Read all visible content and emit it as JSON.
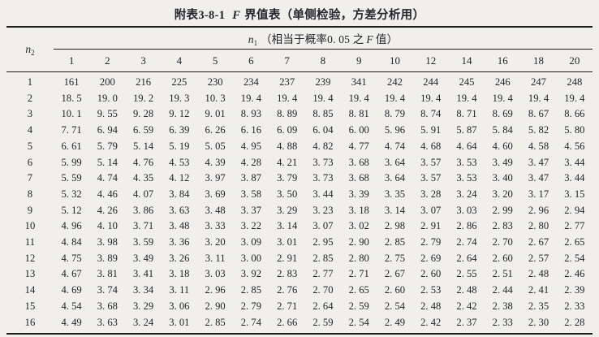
{
  "title": {
    "prefix": "附表3-8-1",
    "f": "F",
    "rest": "界值表（单侧检验，方差分析用）"
  },
  "table": {
    "row_variable": {
      "var": "n",
      "sub": "2"
    },
    "spanner": {
      "var": "n",
      "sub": "1",
      "note_pre": "（相当于概率0. 05 之",
      "f": "F",
      "note_post": "值）"
    },
    "columns": [
      "1",
      "2",
      "3",
      "4",
      "5",
      "6",
      "7",
      "8",
      "9",
      "10",
      "12",
      "14",
      "16",
      "18",
      "20"
    ],
    "rows": [
      {
        "n2": "1",
        "values": [
          "161",
          "200",
          "216",
          "225",
          "230",
          "234",
          "237",
          "239",
          "341",
          "242",
          "244",
          "245",
          "246",
          "247",
          "248"
        ]
      },
      {
        "n2": "2",
        "values": [
          "18. 5",
          "19. 0",
          "19. 2",
          "19. 3",
          "10. 3",
          "19. 4",
          "19. 4",
          "19. 4",
          "19. 4",
          "19. 4",
          "19. 4",
          "19. 4",
          "19. 4",
          "19. 4",
          "19. 4"
        ]
      },
      {
        "n2": "3",
        "values": [
          "10. 1",
          "9. 55",
          "9. 28",
          "9. 12",
          "9. 01",
          "8. 93",
          "8. 89",
          "8. 85",
          "8. 81",
          "8. 79",
          "8. 74",
          "8. 71",
          "8. 69",
          "8. 67",
          "8. 66"
        ]
      },
      {
        "n2": "4",
        "values": [
          "7. 71",
          "6. 94",
          "6. 59",
          "6. 39",
          "6. 26",
          "6. 16",
          "6. 09",
          "6. 04",
          "6. 00",
          "5. 96",
          "5. 91",
          "5. 87",
          "5. 84",
          "5. 82",
          "5. 80"
        ]
      },
      {
        "n2": "5",
        "values": [
          "6. 61",
          "5. 79",
          "5. 14",
          "5. 19",
          "5. 05",
          "4. 95",
          "4. 88",
          "4. 82",
          "4. 77",
          "4. 74",
          "4. 68",
          "4. 64",
          "4. 60",
          "4. 58",
          "4. 56"
        ]
      },
      {
        "n2": "6",
        "values": [
          "5. 99",
          "5. 14",
          "4. 76",
          "4. 53",
          "4. 39",
          "4. 28",
          "4. 21",
          "3. 73",
          "3. 68",
          "3. 64",
          "3. 57",
          "3. 53",
          "3. 49",
          "3. 47",
          "3. 44"
        ]
      },
      {
        "n2": "7",
        "values": [
          "5. 59",
          "4. 74",
          "4. 35",
          "4. 12",
          "3. 97",
          "3. 87",
          "3. 79",
          "3. 73",
          "3. 68",
          "3. 64",
          "3. 57",
          "3. 53",
          "3. 40",
          "3. 47",
          "3. 44"
        ]
      },
      {
        "n2": "8",
        "values": [
          "5. 32",
          "4. 46",
          "4. 07",
          "3. 84",
          "3. 69",
          "3. 58",
          "3. 50",
          "3. 44",
          "3. 39",
          "3. 35",
          "3. 28",
          "3. 24",
          "3. 20",
          "3. 17",
          "3. 15"
        ]
      },
      {
        "n2": "9",
        "values": [
          "5. 12",
          "4. 26",
          "3. 86",
          "3. 63",
          "3. 48",
          "3. 37",
          "3. 29",
          "3. 23",
          "3. 18",
          "3. 14",
          "3. 07",
          "3. 03",
          "2. 99",
          "2. 96",
          "2. 94"
        ]
      },
      {
        "n2": "10",
        "values": [
          "4. 96",
          "4. 10",
          "3. 71",
          "3. 48",
          "3. 33",
          "3. 22",
          "3. 14",
          "3. 07",
          "3. 02",
          "2. 98",
          "2. 91",
          "2. 86",
          "2. 83",
          "2. 80",
          "2. 77"
        ]
      },
      {
        "n2": "11",
        "values": [
          "4. 84",
          "3. 98",
          "3. 59",
          "3. 36",
          "3. 20",
          "3. 09",
          "3. 01",
          "2. 95",
          "2. 90",
          "2. 85",
          "2. 79",
          "2. 74",
          "2. 70",
          "2. 67",
          "2. 65"
        ]
      },
      {
        "n2": "12",
        "values": [
          "4. 75",
          "3. 89",
          "3. 49",
          "3. 26",
          "3. 11",
          "3. 00",
          "2. 91",
          "2. 85",
          "2. 80",
          "2. 75",
          "2. 69",
          "2. 64",
          "2. 60",
          "2. 57",
          "2. 54"
        ]
      },
      {
        "n2": "13",
        "values": [
          "4. 67",
          "3. 81",
          "3. 41",
          "3. 18",
          "3. 03",
          "3. 92",
          "2. 83",
          "2. 77",
          "2. 71",
          "2. 67",
          "2. 60",
          "2. 55",
          "2. 51",
          "2. 48",
          "2. 46"
        ]
      },
      {
        "n2": "14",
        "values": [
          "4. 69",
          "3. 74",
          "3. 34",
          "3. 11",
          "2. 96",
          "2. 85",
          "2. 76",
          "2. 70",
          "2. 65",
          "2. 60",
          "2. 53",
          "2. 48",
          "2. 44",
          "2. 41",
          "2. 39"
        ]
      },
      {
        "n2": "15",
        "values": [
          "4. 54",
          "3. 68",
          "3. 29",
          "3. 06",
          "2. 90",
          "2. 79",
          "2. 71",
          "2. 64",
          "2. 59",
          "2. 54",
          "2. 48",
          "2. 42",
          "2. 38",
          "2. 35",
          "2. 33"
        ]
      },
      {
        "n2": "16",
        "values": [
          "4. 49",
          "3. 63",
          "3. 24",
          "3. 01",
          "2. 85",
          "2. 74",
          "2. 66",
          "2. 59",
          "2. 54",
          "2. 49",
          "2. 42",
          "2. 37",
          "2. 33",
          "2. 30",
          "2. 28"
        ]
      }
    ]
  }
}
